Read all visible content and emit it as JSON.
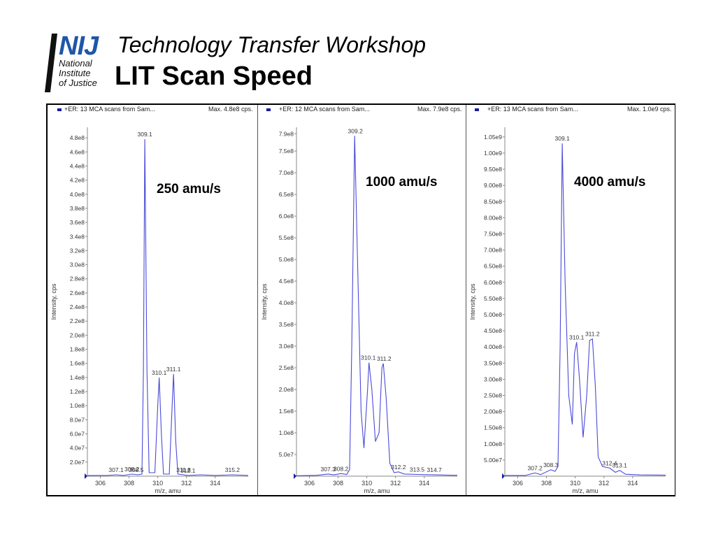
{
  "header": {
    "logo_text": "NIJ",
    "logo_sub": [
      "National",
      "Institute",
      "of Justice"
    ],
    "subtitle": "Technology Transfer Workshop",
    "title": "LIT Scan Speed"
  },
  "colors": {
    "trace": "#4a4ad8",
    "axis": "#888888",
    "logo_blue": "#1f56a8",
    "marker": "#1a1aa0"
  },
  "chart_data": [
    {
      "type": "line",
      "header_text": "+ER: 13 MCA scans from Sam...",
      "max_text": "Max. 4.8e8 cps.",
      "annotation": "250 amu/s",
      "xlabel": "m/z, amu",
      "ylabel": "Intensity, cps",
      "xlim": [
        305.1,
        316.3
      ],
      "ylim": [
        0,
        495000000.0
      ],
      "x_ticks": [
        306,
        308,
        310,
        312,
        314
      ],
      "y_ticks": [
        {
          "v": 20000000.0,
          "label": "2.0e7"
        },
        {
          "v": 40000000.0,
          "label": "4.0e7"
        },
        {
          "v": 60000000.0,
          "label": "6.0e7"
        },
        {
          "v": 80000000.0,
          "label": "8.0e7"
        },
        {
          "v": 100000000.0,
          "label": "1.0e8"
        },
        {
          "v": 120000000.0,
          "label": "1.2e8"
        },
        {
          "v": 140000000.0,
          "label": "1.4e8"
        },
        {
          "v": 160000000.0,
          "label": "1.6e8"
        },
        {
          "v": 180000000.0,
          "label": "1.8e8"
        },
        {
          "v": 200000000.0,
          "label": "2.0e8"
        },
        {
          "v": 220000000.0,
          "label": "2.2e8"
        },
        {
          "v": 240000000.0,
          "label": "2.4e8"
        },
        {
          "v": 260000000.0,
          "label": "2.6e8"
        },
        {
          "v": 280000000.0,
          "label": "2.8e8"
        },
        {
          "v": 300000000.0,
          "label": "3.0e8"
        },
        {
          "v": 320000000.0,
          "label": "3.2e8"
        },
        {
          "v": 340000000.0,
          "label": "3.4e8"
        },
        {
          "v": 360000000.0,
          "label": "3.6e8"
        },
        {
          "v": 380000000.0,
          "label": "3.8e8"
        },
        {
          "v": 400000000.0,
          "label": "4.0e8"
        },
        {
          "v": 420000000.0,
          "label": "4.2e8"
        },
        {
          "v": 440000000.0,
          "label": "4.4e8"
        },
        {
          "v": 460000000.0,
          "label": "4.6e8"
        },
        {
          "v": 480000000.0,
          "label": "4.8e8"
        }
      ],
      "trace": [
        [
          305.1,
          1000000.0
        ],
        [
          306.5,
          1000000.0
        ],
        [
          307.1,
          2000000.0
        ],
        [
          307.6,
          1000000.0
        ],
        [
          308.2,
          3000000.0
        ],
        [
          308.6,
          2000000.0
        ],
        [
          308.9,
          3000000.0
        ],
        [
          309.0,
          150000000.0
        ],
        [
          309.1,
          478000000.0
        ],
        [
          309.25,
          150000000.0
        ],
        [
          309.4,
          5000000.0
        ],
        [
          309.8,
          5000000.0
        ],
        [
          310.0,
          100000000.0
        ],
        [
          310.1,
          140000000.0
        ],
        [
          310.25,
          60000000.0
        ],
        [
          310.4,
          3000000.0
        ],
        [
          310.8,
          3000000.0
        ],
        [
          311.0,
          100000000.0
        ],
        [
          311.1,
          145000000.0
        ],
        [
          311.25,
          50000000.0
        ],
        [
          311.4,
          3000000.0
        ],
        [
          311.8,
          2000000.0
        ],
        [
          312.1,
          1000000.0
        ],
        [
          313.0,
          2000000.0
        ],
        [
          314.0,
          1000000.0
        ],
        [
          315.2,
          2000000.0
        ],
        [
          316.3,
          1000000.0
        ]
      ],
      "peak_labels": [
        {
          "x": 307.1,
          "y": 2000000.0,
          "label": "307.1"
        },
        {
          "x": 308.2,
          "y": 3000000.0,
          "label": "308.2"
        },
        {
          "x": 309.1,
          "y": 478000000.0,
          "label": "309.1"
        },
        {
          "x": 308.5,
          "y": 2000000.0,
          "label": "308.5"
        },
        {
          "x": 310.1,
          "y": 140000000.0,
          "label": "310.1"
        },
        {
          "x": 311.1,
          "y": 145000000.0,
          "label": "311.1"
        },
        {
          "x": 311.8,
          "y": 2000000.0,
          "label": "311.8"
        },
        {
          "x": 312.1,
          "y": 1000000.0,
          "label": "312.1"
        },
        {
          "x": 315.2,
          "y": 2000000.0,
          "label": "315.2"
        }
      ]
    },
    {
      "type": "line",
      "header_text": "+ER: 12 MCA scans from Sam...",
      "max_text": "Max. 7.9e8 cps.",
      "annotation": "1000 amu/s",
      "xlabel": "m/z, amu",
      "ylabel": "Intensity, cps",
      "xlim": [
        305.1,
        316.3
      ],
      "ylim": [
        0,
        805000000.0
      ],
      "x_ticks": [
        306,
        308,
        310,
        312,
        314
      ],
      "y_ticks": [
        {
          "v": 50000000.0,
          "label": "5.0e7"
        },
        {
          "v": 100000000.0,
          "label": "1.0e8"
        },
        {
          "v": 150000000.0,
          "label": "1.5e8"
        },
        {
          "v": 200000000.0,
          "label": "2.0e8"
        },
        {
          "v": 250000000.0,
          "label": "2.5e8"
        },
        {
          "v": 300000000.0,
          "label": "3.0e8"
        },
        {
          "v": 350000000.0,
          "label": "3.5e8"
        },
        {
          "v": 400000000.0,
          "label": "4.0e8"
        },
        {
          "v": 450000000.0,
          "label": "4.5e8"
        },
        {
          "v": 500000000.0,
          "label": "5.0e8"
        },
        {
          "v": 550000000.0,
          "label": "5.5e8"
        },
        {
          "v": 600000000.0,
          "label": "6.0e8"
        },
        {
          "v": 650000000.0,
          "label": "6.5e8"
        },
        {
          "v": 700000000.0,
          "label": "7.0e8"
        },
        {
          "v": 750000000.0,
          "label": "7.5e8"
        },
        {
          "v": 790000000.0,
          "label": "7.9e8"
        }
      ],
      "trace": [
        [
          305.1,
          1000000.0
        ],
        [
          306.5,
          2000000.0
        ],
        [
          307.3,
          5000000.0
        ],
        [
          307.7,
          3000000.0
        ],
        [
          308.2,
          6000000.0
        ],
        [
          308.6,
          4000000.0
        ],
        [
          308.8,
          15000000.0
        ],
        [
          308.95,
          300000000.0
        ],
        [
          309.15,
          785000000.0
        ],
        [
          309.35,
          500000000.0
        ],
        [
          309.6,
          150000000.0
        ],
        [
          309.8,
          65000000.0
        ],
        [
          310.05,
          200000000.0
        ],
        [
          310.15,
          262000000.0
        ],
        [
          310.35,
          200000000.0
        ],
        [
          310.6,
          80000000.0
        ],
        [
          310.85,
          100000000.0
        ],
        [
          311.05,
          250000000.0
        ],
        [
          311.15,
          260000000.0
        ],
        [
          311.35,
          180000000.0
        ],
        [
          311.6,
          30000000.0
        ],
        [
          311.9,
          8000000.0
        ],
        [
          312.2,
          10000000.0
        ],
        [
          312.6,
          5000000.0
        ],
        [
          313.5,
          4000000.0
        ],
        [
          314.7,
          3000000.0
        ],
        [
          316.3,
          2000000.0
        ]
      ],
      "peak_labels": [
        {
          "x": 307.3,
          "y": 5000000.0,
          "label": "307.3"
        },
        {
          "x": 308.2,
          "y": 6000000.0,
          "label": "308.2"
        },
        {
          "x": 309.2,
          "y": 785000000.0,
          "label": "309.2"
        },
        {
          "x": 310.1,
          "y": 262000000.0,
          "label": "310.1"
        },
        {
          "x": 311.2,
          "y": 260000000.0,
          "label": "311.2"
        },
        {
          "x": 312.2,
          "y": 10000000.0,
          "label": "312.2"
        },
        {
          "x": 313.5,
          "y": 4000000.0,
          "label": "313.5"
        },
        {
          "x": 314.7,
          "y": 3000000.0,
          "label": "314.7"
        }
      ]
    },
    {
      "type": "line",
      "header_text": "+ER: 13 MCA scans from Sam...",
      "max_text": "Max. 1.0e9 cps.",
      "annotation": "4000 amu/s",
      "xlabel": "m/z, amu",
      "ylabel": "Intensity, cps",
      "xlim": [
        305.1,
        316.3
      ],
      "ylim": [
        0,
        1080000000.0
      ],
      "x_ticks": [
        306,
        308,
        310,
        312,
        314
      ],
      "y_ticks": [
        {
          "v": 50000000.0,
          "label": "5.00e7"
        },
        {
          "v": 100000000.0,
          "label": "1.00e8"
        },
        {
          "v": 150000000.0,
          "label": "1.50e8"
        },
        {
          "v": 200000000.0,
          "label": "2.00e8"
        },
        {
          "v": 250000000.0,
          "label": "2.50e8"
        },
        {
          "v": 300000000.0,
          "label": "3.00e8"
        },
        {
          "v": 350000000.0,
          "label": "3.50e8"
        },
        {
          "v": 400000000.0,
          "label": "4.00e8"
        },
        {
          "v": 450000000.0,
          "label": "4.50e8"
        },
        {
          "v": 500000000.0,
          "label": "5.00e8"
        },
        {
          "v": 550000000.0,
          "label": "5.50e8"
        },
        {
          "v": 600000000.0,
          "label": "6.00e8"
        },
        {
          "v": 650000000.0,
          "label": "6.50e8"
        },
        {
          "v": 700000000.0,
          "label": "7.00e8"
        },
        {
          "v": 750000000.0,
          "label": "7.50e8"
        },
        {
          "v": 800000000.0,
          "label": "8.00e8"
        },
        {
          "v": 850000000.0,
          "label": "8.50e8"
        },
        {
          "v": 900000000.0,
          "label": "9.00e8"
        },
        {
          "v": 950000000.0,
          "label": "9.50e8"
        },
        {
          "v": 1000000000.0,
          "label": "1.00e9"
        },
        {
          "v": 1050000000.0,
          "label": "1.05e9"
        }
      ],
      "trace": [
        [
          305.1,
          2000000.0
        ],
        [
          306.5,
          2000000.0
        ],
        [
          307.2,
          10000000.0
        ],
        [
          307.6,
          5000000.0
        ],
        [
          308.3,
          20000000.0
        ],
        [
          308.6,
          15000000.0
        ],
        [
          308.8,
          30000000.0
        ],
        [
          308.95,
          400000000.0
        ],
        [
          309.1,
          1030000000.0
        ],
        [
          309.3,
          600000000.0
        ],
        [
          309.55,
          250000000.0
        ],
        [
          309.8,
          160000000.0
        ],
        [
          309.95,
          380000000.0
        ],
        [
          310.1,
          415000000.0
        ],
        [
          310.3,
          300000000.0
        ],
        [
          310.55,
          120000000.0
        ],
        [
          310.8,
          250000000.0
        ],
        [
          311.0,
          420000000.0
        ],
        [
          311.2,
          425000000.0
        ],
        [
          311.4,
          280000000.0
        ],
        [
          311.6,
          60000000.0
        ],
        [
          311.9,
          30000000.0
        ],
        [
          312.4,
          25000000.0
        ],
        [
          312.8,
          12000000.0
        ],
        [
          313.1,
          18000000.0
        ],
        [
          313.5,
          6000000.0
        ],
        [
          314.5,
          4000000.0
        ],
        [
          316.3,
          3000000.0
        ]
      ],
      "peak_labels": [
        {
          "x": 307.2,
          "y": 10000000.0,
          "label": "307.2"
        },
        {
          "x": 308.3,
          "y": 20000000.0,
          "label": "308.3"
        },
        {
          "x": 309.1,
          "y": 1030000000.0,
          "label": "309.1"
        },
        {
          "x": 310.1,
          "y": 415000000.0,
          "label": "310.1"
        },
        {
          "x": 311.2,
          "y": 425000000.0,
          "label": "311.2"
        },
        {
          "x": 312.4,
          "y": 25000000.0,
          "label": "312.4"
        },
        {
          "x": 313.1,
          "y": 18000000.0,
          "label": "313.1"
        }
      ]
    }
  ]
}
